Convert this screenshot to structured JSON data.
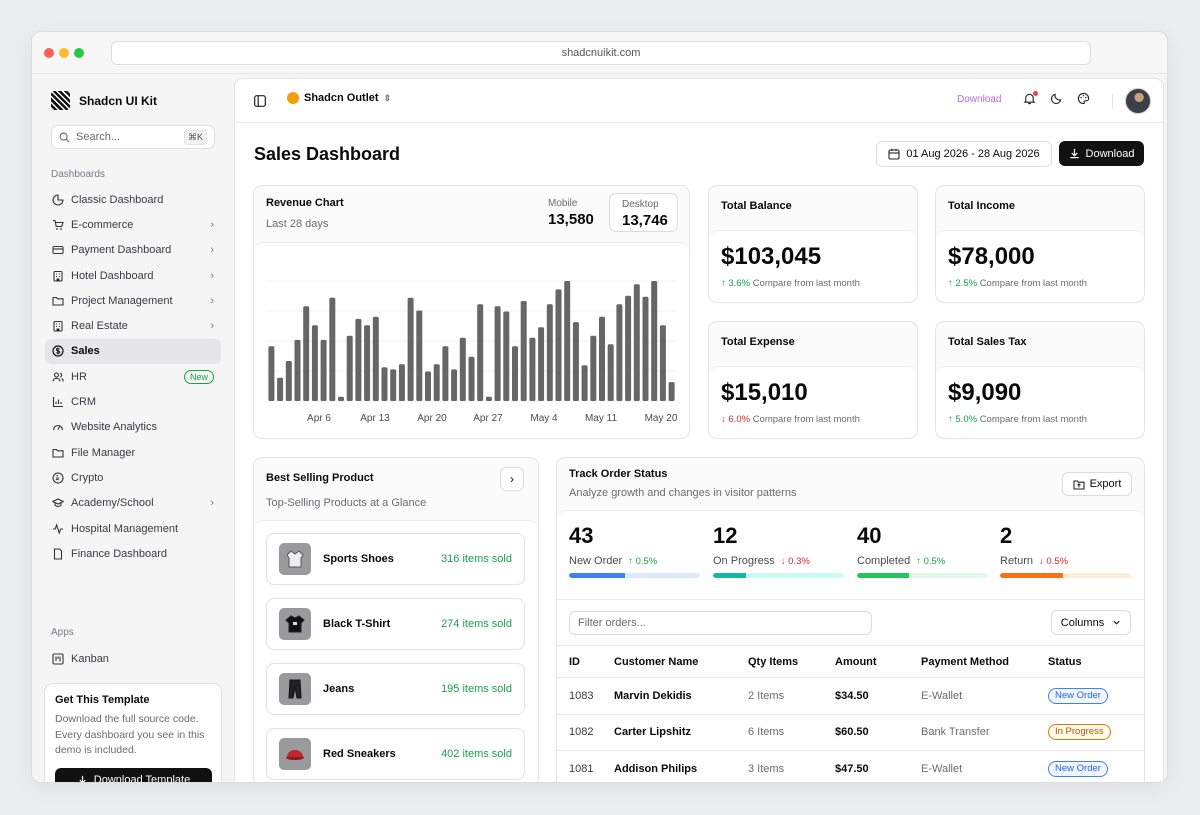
{
  "browser": {
    "url": "shadcnuikit.com"
  },
  "sidebar": {
    "brand": "Shadcn UI Kit",
    "search_placeholder": "Search...",
    "search_shortcut": "⌘K",
    "section_dashboards": "Dashboards",
    "items": [
      {
        "label": "Classic Dashboard",
        "icon": "pie-chart-icon",
        "chevron": false
      },
      {
        "label": "E-commerce",
        "icon": "cart-icon",
        "chevron": true
      },
      {
        "label": "Payment Dashboard",
        "icon": "credit-card-icon",
        "chevron": true
      },
      {
        "label": "Hotel Dashboard",
        "icon": "building-icon",
        "chevron": true
      },
      {
        "label": "Project Management",
        "icon": "folder-icon",
        "chevron": true
      },
      {
        "label": "Real Estate",
        "icon": "building-icon",
        "chevron": true
      },
      {
        "label": "Sales",
        "icon": "dollar-circle-icon",
        "chevron": false,
        "active": true
      },
      {
        "label": "HR",
        "icon": "users-icon",
        "badge": "New"
      },
      {
        "label": "CRM",
        "icon": "chart-icon"
      },
      {
        "label": "Website Analytics",
        "icon": "gauge-icon"
      },
      {
        "label": "File Manager",
        "icon": "folder-icon"
      },
      {
        "label": "Crypto",
        "icon": "wallet-icon"
      },
      {
        "label": "Academy/School",
        "icon": "graduation-cap-icon",
        "chevron": true
      },
      {
        "label": "Hospital Management",
        "icon": "activity-icon"
      },
      {
        "label": "Finance Dashboard",
        "icon": "file-icon"
      }
    ],
    "section_apps": "Apps",
    "apps": [
      {
        "label": "Kanban",
        "icon": "kanban-icon"
      }
    ],
    "template_card": {
      "title": "Get This Template",
      "text": "Download the full source code. Every dashboard you see in this demo is included.",
      "button": "Download Template"
    }
  },
  "topbar": {
    "store": "Shadcn Outlet",
    "download_link": "Download"
  },
  "header": {
    "title": "Sales Dashboard",
    "date_range": "01 Aug 2026 - 28 Aug 2026",
    "download_button": "Download"
  },
  "revenue": {
    "title": "Revenue Chart",
    "subtitle": "Last 28 days",
    "mobile_label": "Mobile",
    "mobile_value": "13,580",
    "desktop_label": "Desktop",
    "desktop_value": "13,746"
  },
  "chart_data": {
    "type": "bar",
    "title": "Revenue Chart",
    "series": [
      {
        "name": "Desktop",
        "values": [
          52,
          22,
          38,
          58,
          90,
          72,
          58,
          98,
          4,
          62,
          78,
          72,
          80,
          32,
          30,
          35,
          98,
          86,
          28,
          35,
          52,
          30,
          60,
          42,
          92,
          4,
          90,
          85,
          52,
          95,
          60,
          70,
          92,
          106,
          114,
          75,
          34,
          62,
          80,
          54,
          92,
          100,
          111,
          99,
          114,
          72,
          18
        ]
      },
      {
        "name": "base",
        "values": []
      }
    ],
    "x_tick_labels": [
      "Apr 6",
      "Apr 13",
      "Apr 20",
      "Apr 27",
      "May 4",
      "May 11",
      "May 20"
    ],
    "grid": true,
    "legend": "none"
  },
  "kpis": [
    {
      "title": "Total Balance",
      "value": "$103,045",
      "change": "3.6%",
      "dir": "up",
      "note": "Compare from last month"
    },
    {
      "title": "Total Income",
      "value": "$78,000",
      "change": "2.5%",
      "dir": "up",
      "note": "Compare from last month"
    },
    {
      "title": "Total Expense",
      "value": "$15,010",
      "change": "6.0%",
      "dir": "down",
      "note": "Compare from last month"
    },
    {
      "title": "Total Sales Tax",
      "value": "$9,090",
      "change": "5.0%",
      "dir": "up",
      "note": "Compare from last month"
    }
  ],
  "best_selling": {
    "title": "Best Selling Product",
    "subtitle": "Top-Selling Products at a Glance",
    "products": [
      {
        "name": "Sports Shoes",
        "sold": "316 items sold",
        "icon": "hoodie-icon"
      },
      {
        "name": "Black T-Shirt",
        "sold": "274 items sold",
        "icon": "tshirt-icon"
      },
      {
        "name": "Jeans",
        "sold": "195 items sold",
        "icon": "pants-icon"
      },
      {
        "name": "Red Sneakers",
        "sold": "402 items sold",
        "icon": "cap-icon"
      }
    ]
  },
  "track": {
    "title": "Track Order Status",
    "subtitle": "Analyze growth and changes in visitor patterns",
    "export": "Export",
    "stats": [
      {
        "num": "43",
        "label": "New Order",
        "change": "0.5%",
        "dir": "up",
        "fill": 0.43,
        "color": "#3b82f6",
        "bg": "#dbeafe"
      },
      {
        "num": "12",
        "label": "On Progress",
        "change": "0.3%",
        "dir": "down",
        "fill": 0.25,
        "color": "#14b8a6",
        "bg": "#ccfbf1"
      },
      {
        "num": "40",
        "label": "Completed",
        "change": "0.5%",
        "dir": "up",
        "fill": 0.4,
        "color": "#22c55e",
        "bg": "#dcfce7"
      },
      {
        "num": "2",
        "label": "Return",
        "change": "0.5%",
        "dir": "down",
        "fill": 0.48,
        "color": "#f97316",
        "bg": "#ffedd5"
      }
    ],
    "filter_placeholder": "Filter orders...",
    "columns_button": "Columns",
    "headers": [
      "ID",
      "Customer Name",
      "Qty Items",
      "Amount",
      "Payment Method",
      "Status"
    ],
    "rows": [
      {
        "id": "1083",
        "customer": "Marvin Dekidis",
        "qty": "2 Items",
        "amount": "$34.50",
        "method": "E-Wallet",
        "status": "New Order",
        "kind": "new"
      },
      {
        "id": "1082",
        "customer": "Carter Lipshitz",
        "qty": "6 Items",
        "amount": "$60.50",
        "method": "Bank Transfer",
        "status": "In Progress",
        "kind": "prog"
      },
      {
        "id": "1081",
        "customer": "Addison Philips",
        "qty": "3 Items",
        "amount": "$47.50",
        "method": "E-Wallet",
        "status": "New Order",
        "kind": "new"
      }
    ]
  }
}
